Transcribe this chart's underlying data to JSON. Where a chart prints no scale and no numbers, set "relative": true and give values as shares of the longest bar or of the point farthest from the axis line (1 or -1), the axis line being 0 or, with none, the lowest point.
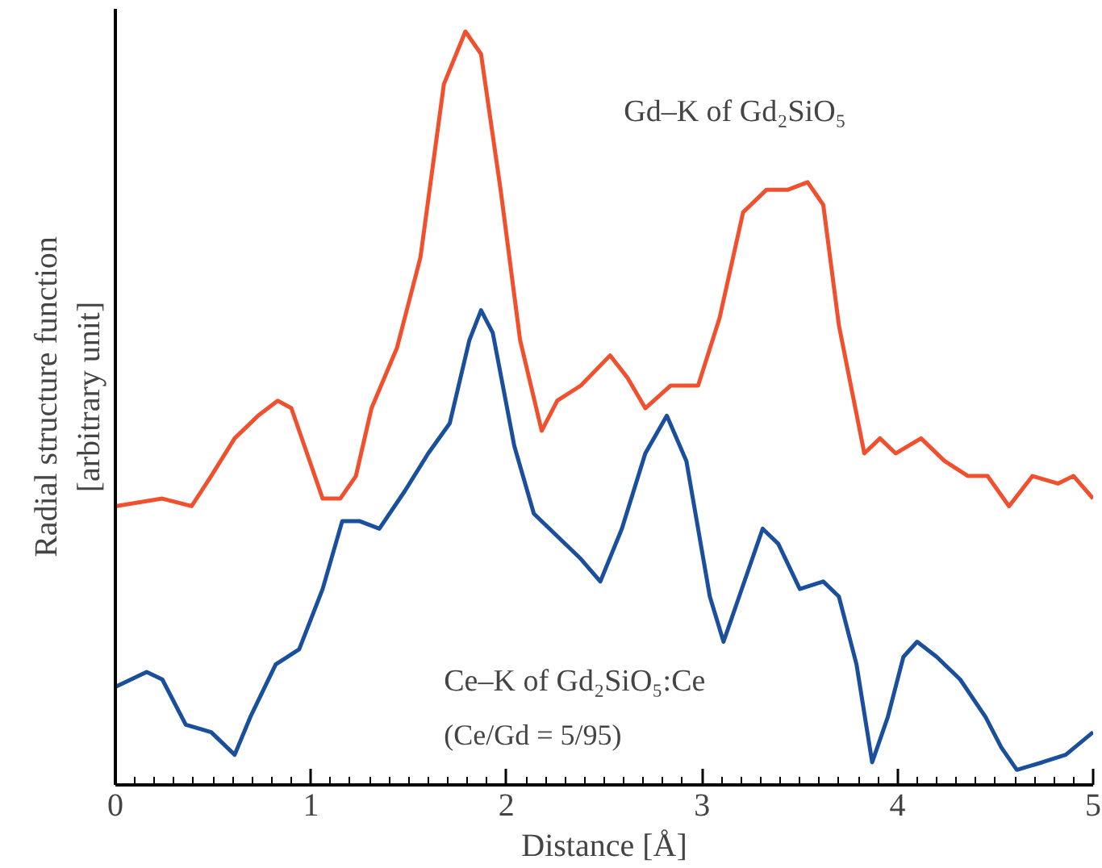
{
  "chart_data": {
    "type": "line",
    "relative": true,
    "xlabel": "Distance [Å]",
    "ylabel": "Radial structure function\n[arbitrary unit]",
    "xlim": [
      0,
      5
    ],
    "xticks": [
      0,
      1,
      2,
      3,
      4,
      5
    ],
    "grid": false,
    "marker": "none",
    "line_style": "solid",
    "annotations": [
      "(Ce/Gd = 5/95)"
    ],
    "series": [
      {
        "name": "Gd–K of Gd₂SiO₅",
        "color": "#f0502d",
        "x": [
          0,
          0.24,
          0.39,
          0.49,
          0.61,
          0.73,
          0.83,
          0.9,
          0.98,
          1.06,
          1.15,
          1.23,
          1.31,
          1.44,
          1.56,
          1.68,
          1.79,
          1.87,
          1.97,
          2.07,
          2.18,
          2.26,
          2.38,
          2.53,
          2.62,
          2.71,
          2.84,
          2.98,
          3.09,
          3.21,
          3.33,
          3.44,
          3.54,
          3.62,
          3.7,
          3.83,
          3.91,
          3.99,
          4.12,
          4.24,
          4.36,
          4.46,
          4.57,
          4.69,
          4.82,
          4.9,
          5
        ],
        "values": [
          0.37,
          0.38,
          0.37,
          0.41,
          0.46,
          0.49,
          0.51,
          0.5,
          0.44,
          0.38,
          0.38,
          0.41,
          0.5,
          0.58,
          0.7,
          0.93,
          1.0,
          0.97,
          0.79,
          0.59,
          0.47,
          0.51,
          0.53,
          0.57,
          0.54,
          0.5,
          0.53,
          0.53,
          0.62,
          0.76,
          0.79,
          0.79,
          0.8,
          0.77,
          0.61,
          0.44,
          0.46,
          0.44,
          0.46,
          0.43,
          0.41,
          0.41,
          0.37,
          0.41,
          0.4,
          0.41,
          0.38
        ]
      },
      {
        "name": "Ce–K of Gd₂SiO₅:Ce",
        "color": "#1a4f9c",
        "x": [
          0,
          0.16,
          0.24,
          0.36,
          0.49,
          0.61,
          0.69,
          0.82,
          0.94,
          1.06,
          1.16,
          1.25,
          1.35,
          1.48,
          1.6,
          1.71,
          1.81,
          1.87,
          1.93,
          2.04,
          2.14,
          2.26,
          2.38,
          2.48,
          2.59,
          2.71,
          2.82,
          2.92,
          3.04,
          3.11,
          3.19,
          3.31,
          3.39,
          3.5,
          3.62,
          3.7,
          3.79,
          3.87,
          3.95,
          4.03,
          4.1,
          4.2,
          4.32,
          4.45,
          4.53,
          4.61,
          4.74,
          4.86,
          5
        ],
        "values": [
          0.13,
          0.15,
          0.14,
          0.08,
          0.07,
          0.04,
          0.09,
          0.16,
          0.18,
          0.26,
          0.35,
          0.35,
          0.34,
          0.39,
          0.44,
          0.48,
          0.59,
          0.63,
          0.6,
          0.45,
          0.36,
          0.33,
          0.3,
          0.27,
          0.34,
          0.44,
          0.49,
          0.43,
          0.25,
          0.19,
          0.25,
          0.34,
          0.32,
          0.26,
          0.27,
          0.25,
          0.16,
          0.03,
          0.09,
          0.17,
          0.19,
          0.17,
          0.14,
          0.09,
          0.05,
          0.02,
          0.03,
          0.04,
          0.07
        ]
      }
    ]
  }
}
